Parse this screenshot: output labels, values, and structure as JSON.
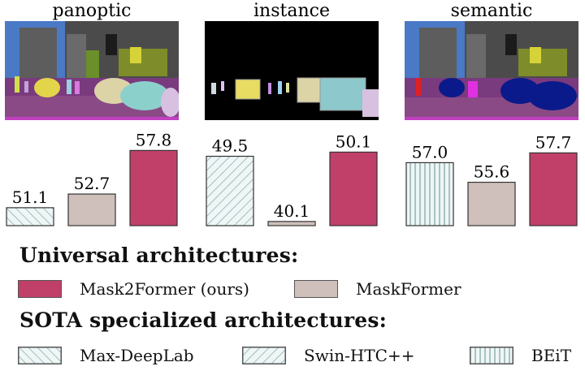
{
  "chart_data": [
    {
      "type": "bar",
      "title": "panoptic",
      "categories": [
        "Max-DeepLab",
        "MaskFormer",
        "Mask2Former (ours)"
      ],
      "values": [
        51.1,
        52.7,
        57.8
      ],
      "value_labels": [
        "51.1",
        "52.7",
        "57.8"
      ],
      "styles": [
        "maxdeeplab",
        "maskformer",
        "mask2former"
      ],
      "ylim": [
        49.0,
        58.5
      ]
    },
    {
      "type": "bar",
      "title": "instance",
      "categories": [
        "Swin-HTC++",
        "MaskFormer",
        "Mask2Former (ours)"
      ],
      "values": [
        49.5,
        40.1,
        50.1
      ],
      "value_labels": [
        "49.5",
        "40.1",
        "50.1"
      ],
      "styles": [
        "swinhtc",
        "maskformer",
        "mask2former"
      ],
      "ylim": [
        39.5,
        51.2
      ]
    },
    {
      "type": "bar",
      "title": "semantic",
      "categories": [
        "BEiT",
        "MaskFormer",
        "Mask2Former (ours)"
      ],
      "values": [
        57.0,
        55.6,
        57.7
      ],
      "value_labels": [
        "57.0",
        "55.6",
        "57.7"
      ],
      "styles": [
        "beit",
        "maskformer",
        "mask2former"
      ],
      "ylim": [
        52.5,
        58.3
      ]
    }
  ],
  "legend": {
    "universal_heading": "Universal architectures:",
    "specialized_heading": "SOTA specialized architectures:",
    "universal_items": [
      {
        "label": "Mask2Former (ours)",
        "style": "mask2former"
      },
      {
        "label": "MaskFormer",
        "style": "maskformer"
      }
    ],
    "specialized_items": [
      {
        "label": "Max-DeepLab",
        "style": "maxdeeplab"
      },
      {
        "label": "Swin-HTC++",
        "style": "swinhtc"
      },
      {
        "label": "BEiT",
        "style": "beit"
      }
    ]
  },
  "colors": {
    "mask2former": "#c0406a",
    "maskformer": "#cfc0bb",
    "pattern_fill": "#eef6f6",
    "pattern_stroke": "#7f9f9f",
    "scene_black": "#000000"
  }
}
